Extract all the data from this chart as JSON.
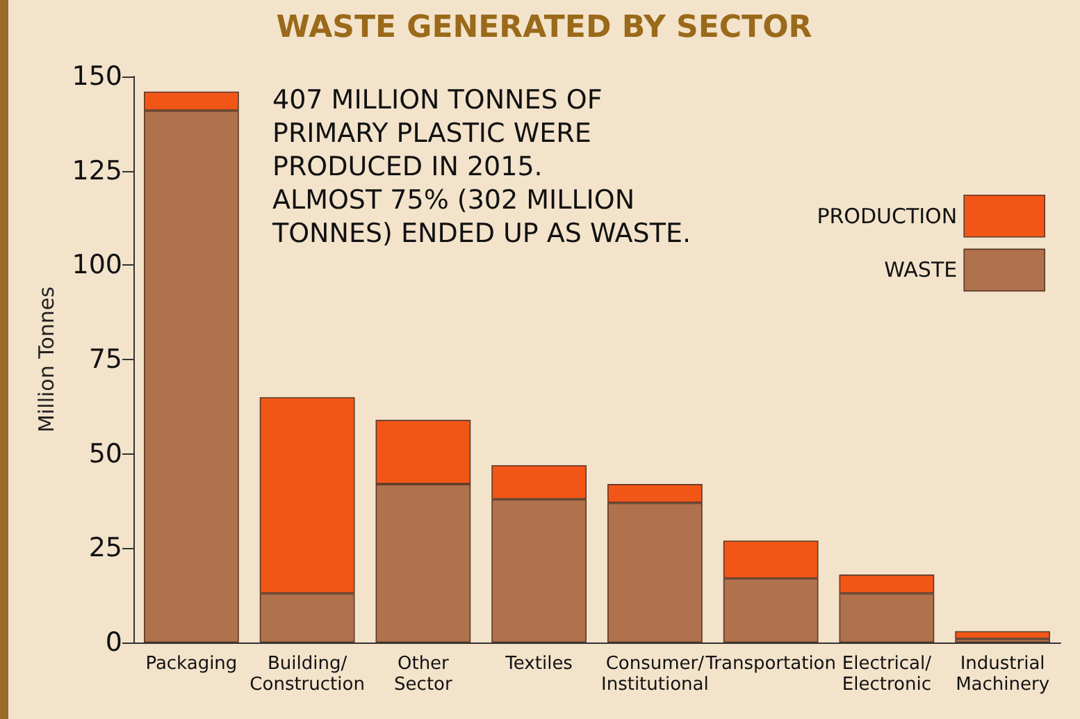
{
  "chart_data": {
    "type": "bar",
    "title": "WASTE GENERATED BY SECTOR",
    "ylabel": "Million Tonnes",
    "stacked": true,
    "grid": false,
    "legend": "top right",
    "annotations": [
      "407 MILLION TONNES OF\nPRIMARY PLASTIC WERE\nPRODUCED IN 2015.\nALMOST 75% (302 MILLION\nTONNES) ENDED UP AS WASTE."
    ],
    "categories": [
      "Packaging",
      "Building/\nConstruction",
      "Other\nSector",
      "Textiles",
      "Consumer/\nInstitutional",
      "Transportation",
      "Electrical/\nElectronic",
      "Industrial\nMachinery"
    ],
    "ylim": [
      0,
      150
    ],
    "yticks": [
      0,
      25,
      50,
      75,
      100,
      125,
      150
    ],
    "series": [
      {
        "name": "WASTE",
        "color": "#b0714d",
        "values": [
          141,
          13,
          42,
          38,
          37,
          17,
          13,
          1
        ]
      },
      {
        "name": "PRODUCTION",
        "color": "#f25616",
        "values": [
          5,
          52,
          17,
          9,
          5,
          10,
          5,
          2
        ]
      }
    ]
  }
}
